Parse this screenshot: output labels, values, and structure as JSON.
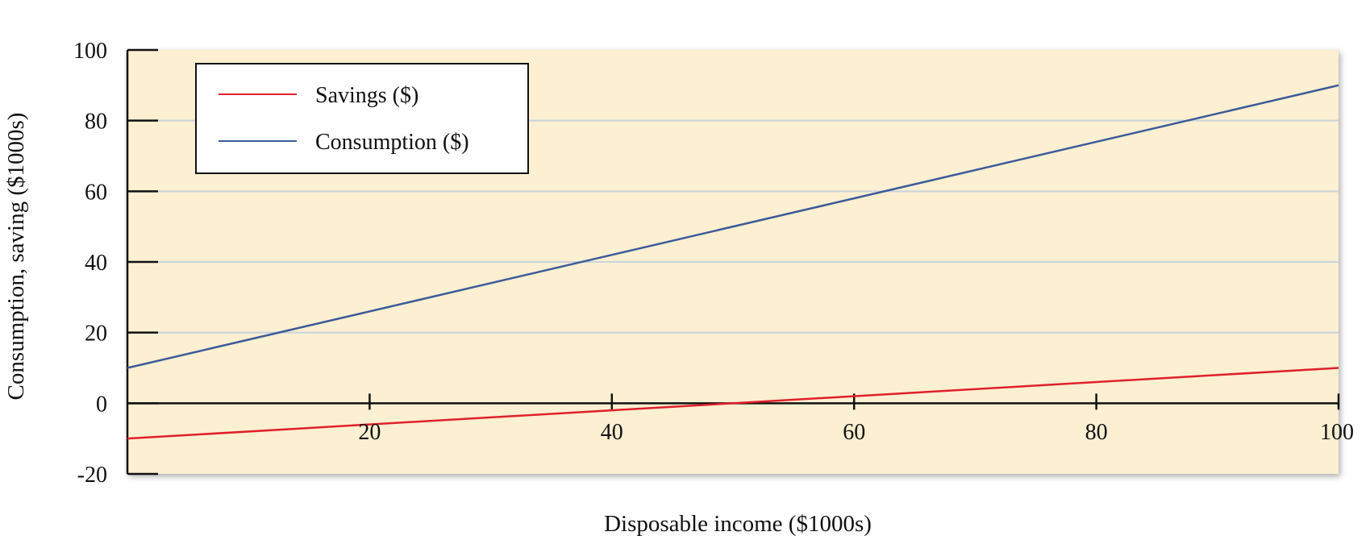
{
  "chart_data": {
    "type": "line",
    "title": "",
    "xlabel": "Disposable income ($1000s)",
    "ylabel": "Consumption, saving ($1000s)",
    "xlim": [
      0,
      100
    ],
    "ylim": [
      -20,
      100
    ],
    "x_ticks": [
      20,
      40,
      60,
      80,
      100
    ],
    "y_ticks": [
      -20,
      0,
      20,
      40,
      60,
      80,
      100
    ],
    "grid": true,
    "legend_position": "top-left",
    "background_color": "#fcefd2",
    "grid_color": "#c9d3dc",
    "series": [
      {
        "name": "Savings ($)",
        "color": "#e0202a",
        "x": [
          0,
          100
        ],
        "y": [
          -10,
          10
        ]
      },
      {
        "name": "Consumption ($)",
        "color": "#3c5a99",
        "x": [
          0,
          100
        ],
        "y": [
          10,
          90
        ]
      }
    ]
  }
}
